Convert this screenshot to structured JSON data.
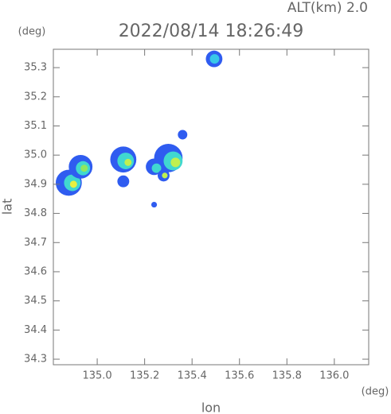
{
  "chart_data": {
    "type": "radar-echo",
    "title": "2022/08/14 18:26:49",
    "subtitle": "ALT(km) 2.0",
    "x_label": "lon",
    "y_label": "lat",
    "x_unit": "(deg)",
    "y_unit": "(deg)",
    "xlim": [
      134.815,
      136.145
    ],
    "ylim": [
      34.281,
      35.363
    ],
    "xticks": [
      {
        "value": 135,
        "label": "135.0"
      },
      135.2,
      135.4,
      135.6,
      135.8,
      {
        "value": 136,
        "label": "136.0"
      }
    ],
    "yticks": [
      34.3,
      34.4,
      34.5,
      34.6,
      34.7,
      34.8,
      34.9,
      {
        "value": 35,
        "label": "35.0"
      },
      35.1,
      35.2,
      35.3
    ],
    "echoes": {
      "x": [
        135.493,
        135.495,
        134.88,
        134.895,
        134.9,
        134.93,
        134.94,
        134.945,
        135.11,
        135.12,
        135.13,
        135.3,
        135.32,
        135.33,
        135.11,
        135.24,
        135.25,
        135.36,
        135.24,
        135.28,
        135.285
      ],
      "y": [
        35.33,
        35.33,
        34.905,
        34.905,
        34.9,
        34.96,
        34.955,
        34.955,
        34.985,
        34.98,
        34.975,
        34.99,
        34.98,
        34.975,
        34.91,
        34.96,
        34.955,
        35.07,
        34.83,
        34.93,
        34.93
      ],
      "sizes": [
        0.035,
        0.02,
        0.055,
        0.035,
        0.015,
        0.05,
        0.03,
        0.015,
        0.055,
        0.035,
        0.015,
        0.06,
        0.04,
        0.02,
        0.025,
        0.035,
        0.02,
        0.02,
        0.012,
        0.025,
        0.012
      ],
      "colors": [
        "#2f5cf0",
        "#38c8e8",
        "#2f5cf0",
        "#40d8d0",
        "#e8f040",
        "#2f5cf0",
        "#40d8d0",
        "#90e860",
        "#2f5cf0",
        "#40d8d0",
        "#c0f050",
        "#2f5cf0",
        "#40d8d0",
        "#c0f050",
        "#2f5cf0",
        "#2f5cf0",
        "#40d8d0",
        "#2f5cf0",
        "#2f5cf0",
        "#2f5cf0",
        "#c0f050"
      ]
    }
  }
}
